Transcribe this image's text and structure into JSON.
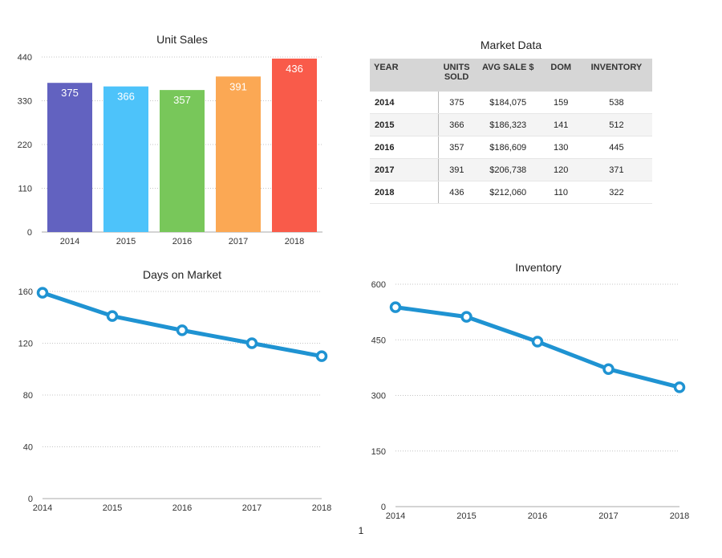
{
  "chart_data": [
    {
      "type": "bar",
      "title": "Unit Sales",
      "categories": [
        "2014",
        "2015",
        "2016",
        "2017",
        "2018"
      ],
      "values": [
        375,
        366,
        357,
        391,
        436
      ],
      "colors": [
        "#6262c0",
        "#4dc3fa",
        "#78c75a",
        "#fba854",
        "#f95b4a"
      ],
      "yticks": [
        0,
        110,
        220,
        330,
        440
      ],
      "ylim": [
        0,
        440
      ],
      "grid": true,
      "data_labels": true
    },
    {
      "type": "table",
      "title": "Market Data",
      "columns": [
        "YEAR",
        "UNITS SOLD",
        "AVG SALE $",
        "DOM",
        "INVENTORY"
      ],
      "rows": [
        [
          "2014",
          "375",
          "$184,075",
          "159",
          "538"
        ],
        [
          "2015",
          "366",
          "$186,323",
          "141",
          "512"
        ],
        [
          "2016",
          "357",
          "$186,609",
          "130",
          "445"
        ],
        [
          "2017",
          "391",
          "$206,738",
          "120",
          "371"
        ],
        [
          "2018",
          "436",
          "$212,060",
          "110",
          "322"
        ]
      ]
    },
    {
      "type": "line",
      "title": "Days on Market",
      "x": [
        "2014",
        "2015",
        "2016",
        "2017",
        "2018"
      ],
      "y": [
        159,
        141,
        130,
        120,
        110
      ],
      "yticks": [
        0,
        40,
        80,
        120,
        160
      ],
      "ylim": [
        0,
        160
      ],
      "color": "#1f93d2",
      "grid": true
    },
    {
      "type": "line",
      "title": "Inventory",
      "x": [
        "2014",
        "2015",
        "2016",
        "2017",
        "2018"
      ],
      "y": [
        538,
        512,
        445,
        371,
        322
      ],
      "yticks": [
        0,
        150,
        300,
        450,
        600
      ],
      "ylim": [
        0,
        600
      ],
      "color": "#1f93d2",
      "grid": true
    }
  ],
  "page": {
    "number": "1"
  }
}
